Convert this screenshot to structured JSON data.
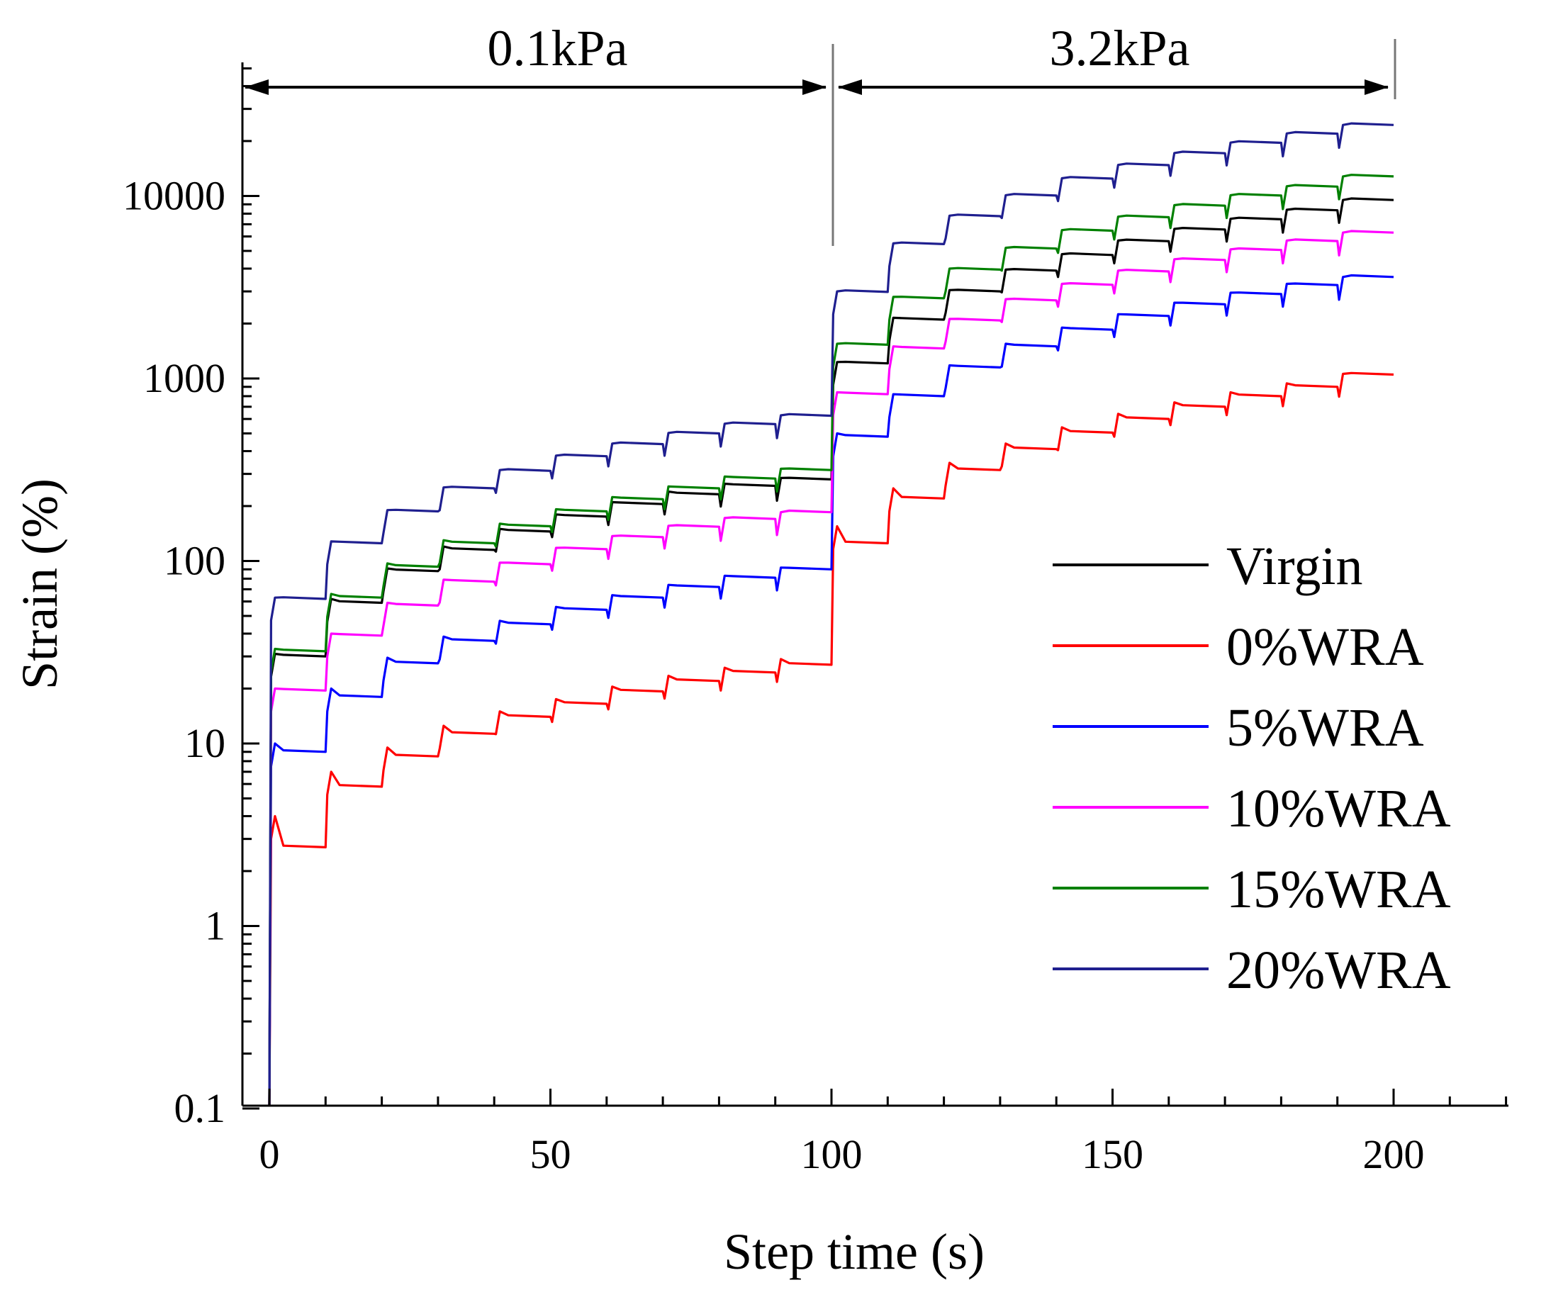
{
  "chart_data": {
    "type": "line",
    "title": "",
    "xlabel": "Step time (s)",
    "ylabel": "Strain (%)",
    "xlim": [
      -5,
      225
    ],
    "ylim": [
      0.1,
      50000
    ],
    "yscale": "log",
    "x_ticks": [
      0,
      50,
      100,
      150,
      200
    ],
    "x_tick_labels": [
      "0",
      "50",
      "100",
      "150",
      "200"
    ],
    "y_ticks": [
      0.1,
      1,
      10,
      100,
      1000,
      10000
    ],
    "y_tick_labels": [
      "0.1",
      "1",
      "10",
      "100",
      "1000",
      "10000"
    ],
    "grid": false,
    "legend_position": "center-right",
    "annotations": [
      {
        "label": "0.1kPa",
        "x_start": 0,
        "x_end": 100
      },
      {
        "label": "3.2kPa",
        "x_start": 100,
        "x_end": 200
      }
    ],
    "cycle_steps": [
      "0",
      "10",
      "20",
      "30",
      "40",
      "50",
      "60",
      "70",
      "80",
      "90",
      "100",
      "110",
      "120",
      "130",
      "140",
      "150",
      "160",
      "170",
      "180",
      "190",
      "200"
    ],
    "series": [
      {
        "name": "Virgin",
        "color": "#000000",
        "peak_strain": [
          31,
          62,
          91,
          120,
          150,
          180,
          210,
          240,
          265,
          285,
          1230,
          2150,
          3050,
          3950,
          4800,
          5700,
          6600,
          7500,
          8400,
          9500
        ],
        "recovered_strain": [
          30,
          59,
          88,
          115,
          145,
          175,
          205,
          232,
          258,
          280,
          1210,
          2100,
          3000,
          3900,
          4750,
          5650,
          6550,
          7450,
          8350,
          9500
        ]
      },
      {
        "name": "0%WRA",
        "color": "#ff0000",
        "peak_strain": [
          4,
          7,
          9.5,
          12.5,
          15,
          17.5,
          20.5,
          23.5,
          26,
          29,
          155,
          250,
          345,
          440,
          540,
          640,
          740,
          840,
          940,
          1060
        ],
        "recovered_strain": [
          2.7,
          5.8,
          8.5,
          11.3,
          14,
          16.5,
          19.3,
          22,
          24.5,
          27,
          125,
          220,
          315,
          410,
          505,
          600,
          700,
          800,
          900,
          1050
        ]
      },
      {
        "name": "5%WRA",
        "color": "#0000ff",
        "peak_strain": [
          10,
          20,
          29.5,
          38.5,
          47,
          56,
          65,
          74,
          83,
          92,
          500,
          820,
          1180,
          1550,
          1900,
          2250,
          2600,
          2950,
          3300,
          3600
        ],
        "recovered_strain": [
          9,
          18,
          27.5,
          36.5,
          45,
          54,
          63,
          72,
          81,
          90,
          480,
          800,
          1150,
          1500,
          1850,
          2200,
          2550,
          2900,
          3250,
          3600
        ]
      },
      {
        "name": "10%WRA",
        "color": "#ff00ff",
        "peak_strain": [
          20,
          40,
          59,
          79,
          98,
          118,
          137,
          156,
          172,
          185,
          840,
          1500,
          2120,
          2720,
          3300,
          3900,
          4500,
          5100,
          5700,
          6300
        ],
        "recovered_strain": [
          19.5,
          39,
          57,
          77,
          96,
          116,
          135,
          154,
          170,
          185,
          820,
          1460,
          2080,
          2680,
          3260,
          3860,
          4460,
          5060,
          5660,
          6300
        ]
      },
      {
        "name": "15%WRA",
        "color": "#008000",
        "peak_strain": [
          33,
          66,
          97,
          130,
          160,
          192,
          224,
          256,
          290,
          320,
          1550,
          2800,
          4000,
          5200,
          6500,
          7700,
          8900,
          10100,
          11300,
          12800
        ],
        "recovered_strain": [
          32,
          63,
          93,
          125,
          155,
          187,
          218,
          250,
          283,
          315,
          1530,
          2750,
          3950,
          5150,
          6450,
          7650,
          8850,
          10050,
          11250,
          12800
        ]
      },
      {
        "name": "20%WRA",
        "color": "#1f1f8f",
        "peak_strain": [
          63,
          128,
          190,
          253,
          315,
          378,
          440,
          503,
          565,
          628,
          3000,
          5500,
          7800,
          10100,
          12500,
          14800,
          17200,
          19600,
          22000,
          24500
        ],
        "recovered_strain": [
          62,
          125,
          187,
          250,
          312,
          375,
          437,
          500,
          562,
          625,
          2980,
          5450,
          7750,
          10050,
          12450,
          14750,
          17150,
          19550,
          21950,
          24500
        ]
      }
    ]
  }
}
